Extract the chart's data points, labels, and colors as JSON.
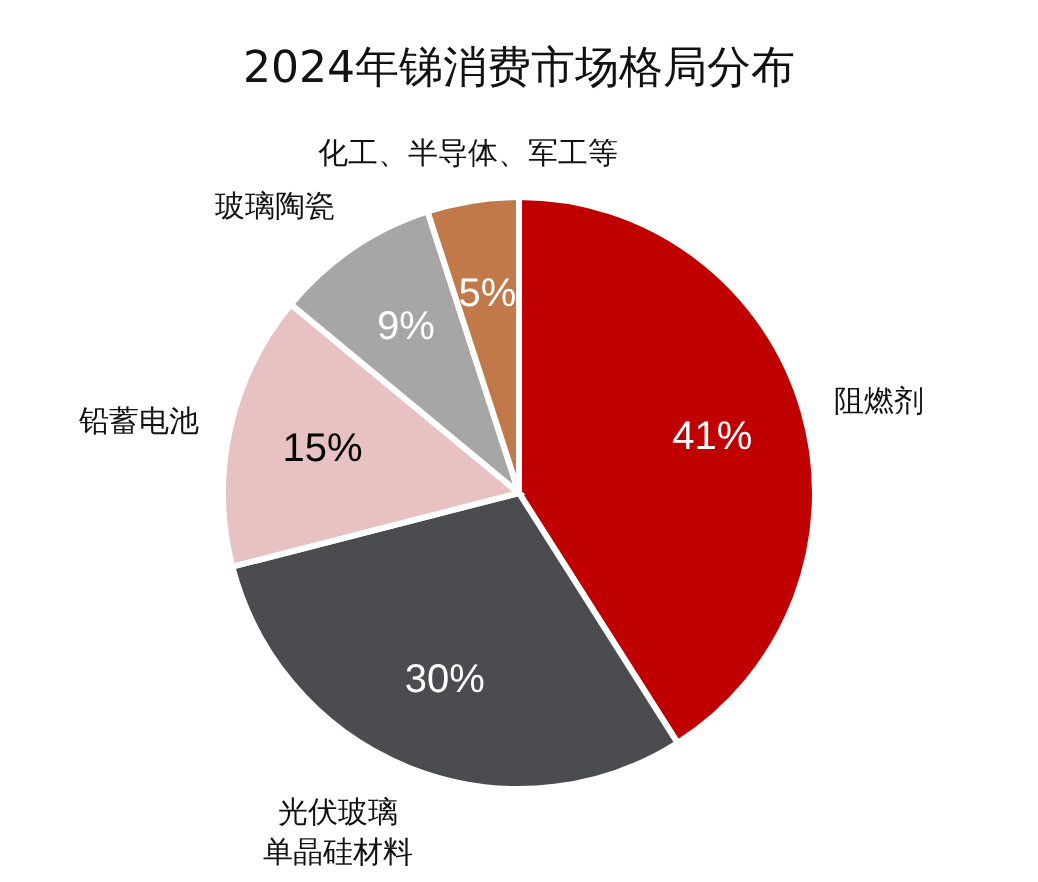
{
  "chart_data": {
    "type": "pie",
    "title": "2024年锑消费市场格局分布",
    "categories": [
      "阻燃剂",
      "光伏玻璃单晶硅材料",
      "铅蓄电池",
      "玻璃陶瓷",
      "化工、半导体、军工等"
    ],
    "values": [
      41,
      30,
      15,
      9,
      5
    ],
    "colors": [
      "#c00000",
      "#4b4c4f",
      "#e8c1c3",
      "#a6a6a6",
      "#c1794a"
    ],
    "value_labels": [
      "41%",
      "30%",
      "15%",
      "9%",
      "5%"
    ],
    "legend": false
  }
}
